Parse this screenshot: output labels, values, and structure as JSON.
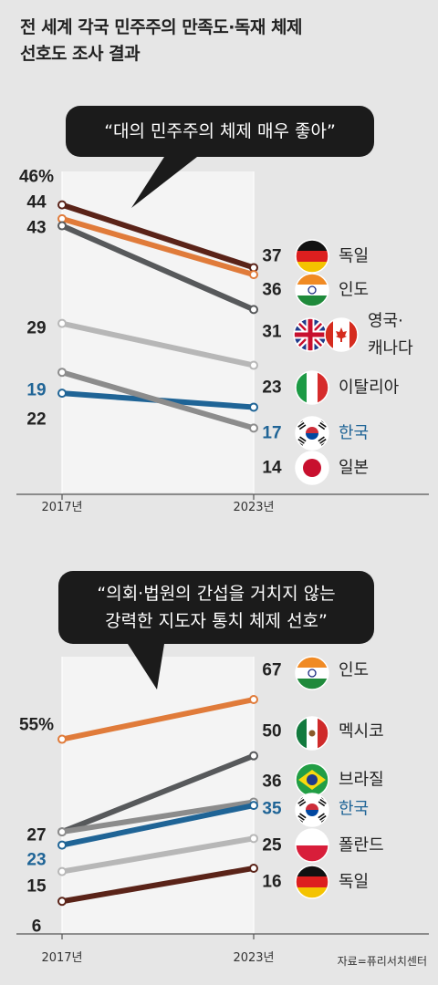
{
  "title": {
    "line1": "전 세계 각국 민주주의 만족도·독재 체제",
    "line2": "선호도 조사 결과"
  },
  "source": "자료=퓨리서치센터",
  "colors": {
    "highlight": "#1f6496",
    "axis": "#555555",
    "grid": "#f4f4f4"
  },
  "chart_data": [
    {
      "type": "line",
      "title": "“대의 민주주의 체제 매우 좋아”",
      "x": [
        "2017년",
        "2023년"
      ],
      "ylim": [
        10,
        50
      ],
      "series": [
        {
          "name": "독일",
          "values": [
            46,
            37
          ],
          "first_label": "46%",
          "last_label": "37",
          "color": "#5a2318",
          "label_color": "#222222",
          "flags": [
            "germany"
          ]
        },
        {
          "name": "인도",
          "values": [
            44,
            36
          ],
          "first_label": "44",
          "last_label": "36",
          "color": "#e07b3a",
          "label_color": "#222222",
          "flags": [
            "india"
          ]
        },
        {
          "name": "영국·캐나다",
          "values": [
            43,
            31
          ],
          "first_label": "43",
          "last_label": "31",
          "color": "#57595b",
          "label_color": "#222222",
          "flags": [
            "uk",
            "canada"
          ]
        },
        {
          "name": "이탈리아",
          "values": [
            29,
            23
          ],
          "first_label": "29",
          "last_label": "23",
          "color": "#b7b7b7",
          "label_color": "#222222",
          "flags": [
            "italy"
          ]
        },
        {
          "name": "한국",
          "values": [
            19,
            17
          ],
          "first_label": "19",
          "last_label": "17",
          "color": "#1f6496",
          "label_color": "#1f6496",
          "flags": [
            "korea"
          ]
        },
        {
          "name": "일본",
          "values": [
            22,
            14
          ],
          "first_label": "22",
          "last_label": "14",
          "color": "#8c8c8c",
          "label_color": "#222222",
          "flags": [
            "japan"
          ]
        }
      ]
    },
    {
      "type": "line",
      "title": "“의회·법원의 간섭을 거치지 않는 강력한 지도자 통치 체제 선호”",
      "x": [
        "2017년",
        "2023년"
      ],
      "ylim": [
        0,
        75
      ],
      "series": [
        {
          "name": "인도",
          "values": [
            55,
            67
          ],
          "first_label": "55%",
          "last_label": "67",
          "color": "#e07b3a",
          "label_color": "#222222",
          "flags": [
            "india"
          ]
        },
        {
          "name": "멕시코",
          "values": [
            27,
            50
          ],
          "first_label": "27",
          "last_label": "50",
          "color": "#57595b",
          "label_color": "#222222",
          "flags": [
            "mexico"
          ]
        },
        {
          "name": "브라질",
          "values": [
            27,
            36
          ],
          "first_label": "",
          "last_label": "36",
          "color": "#8c8c8c",
          "label_color": "#222222",
          "flags": [
            "brazil"
          ]
        },
        {
          "name": "한국",
          "values": [
            23,
            35
          ],
          "first_label": "23",
          "last_label": "35",
          "color": "#1f6496",
          "label_color": "#1f6496",
          "flags": [
            "korea"
          ]
        },
        {
          "name": "폴란드",
          "values": [
            15,
            25
          ],
          "first_label": "15",
          "last_label": "25",
          "color": "#b7b7b7",
          "label_color": "#222222",
          "flags": [
            "poland"
          ]
        },
        {
          "name": "독일",
          "values": [
            6,
            16
          ],
          "first_label": "6",
          "last_label": "16",
          "color": "#5a2318",
          "label_color": "#222222",
          "flags": [
            "germany"
          ]
        }
      ]
    }
  ]
}
